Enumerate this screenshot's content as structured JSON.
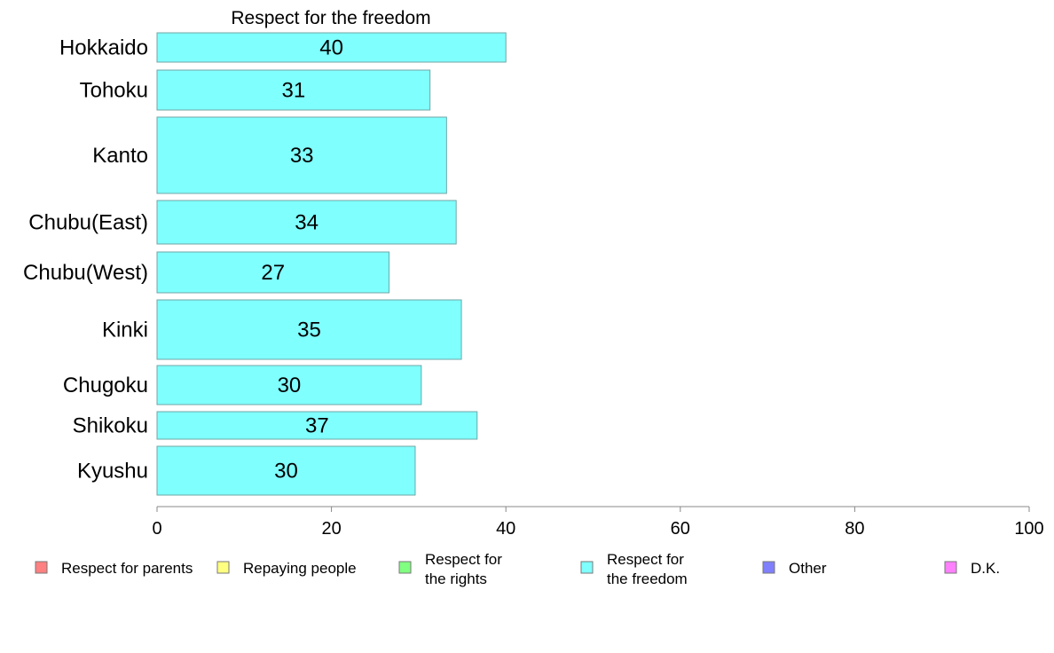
{
  "chart_data": {
    "type": "bar",
    "orientation": "horizontal",
    "title": "Respect for the freedom",
    "categories": [
      "Hokkaido",
      "Tohoku",
      "Kanto",
      "Chubu(East)",
      "Chubu(West)",
      "Kinki",
      "Chugoku",
      "Shikoku",
      "Kyushu"
    ],
    "values": [
      40,
      31,
      33,
      34,
      27,
      35,
      30,
      37,
      30
    ],
    "data_labels": [
      "40",
      "31",
      "33",
      "34",
      "27",
      "35",
      "30",
      "37",
      "30"
    ],
    "bar_values_exact": [
      40.0,
      31.3,
      33.2,
      34.3,
      26.6,
      34.9,
      30.3,
      36.7,
      29.6
    ],
    "series_color": "#80ffff",
    "bar_stroke": "#6fa6a6",
    "xlim": [
      0,
      100
    ],
    "xticks": [
      0,
      20,
      40,
      60,
      80,
      100
    ],
    "xtick_labels": [
      "0",
      "20",
      "40",
      "60",
      "80",
      "100"
    ],
    "grid": false,
    "legend_position": "bottom",
    "legend": [
      {
        "lines": [
          "Respect for parents"
        ],
        "color": "#ff8080"
      },
      {
        "lines": [
          "Repaying people"
        ],
        "color": "#ffff80"
      },
      {
        "lines": [
          "Respect for",
          "the rights"
        ],
        "color": "#80ff80"
      },
      {
        "lines": [
          "Respect for",
          "the freedom"
        ],
        "color": "#80ffff"
      },
      {
        "lines": [
          "Other"
        ],
        "color": "#8080ff"
      },
      {
        "lines": [
          "D.K."
        ],
        "color": "#ff80ff"
      }
    ]
  }
}
